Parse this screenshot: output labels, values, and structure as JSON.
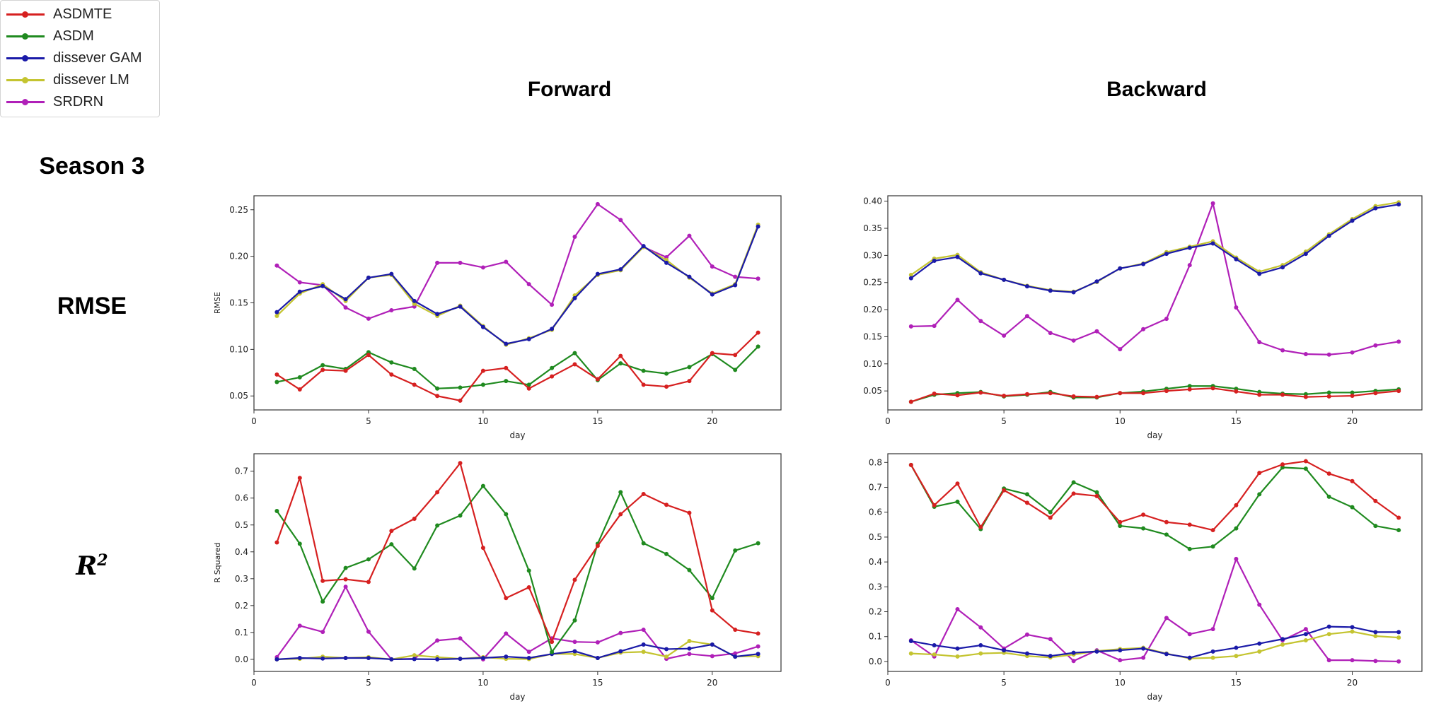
{
  "legend": [
    {
      "name": "ASDMTE",
      "color": "#d62020"
    },
    {
      "name": "ASDM",
      "color": "#1f8a1f"
    },
    {
      "name": "dissever GAM",
      "color": "#1a1aa8"
    },
    {
      "name": "dissever LM",
      "color": "#c4c430"
    },
    {
      "name": "SRDRN",
      "color": "#b020b8"
    }
  ],
  "headers": {
    "forward": "Forward",
    "backward": "Backward",
    "season": "Season 3",
    "rmse": "RMSE",
    "r2_base": "R",
    "r2_sup": "2"
  },
  "chart_data": [
    {
      "id": "rmse_forward",
      "type": "line",
      "xlabel": "day",
      "ylabel": "RMSE",
      "xlim": [
        0,
        23
      ],
      "ylim": [
        0.035,
        0.265
      ],
      "xticks": [
        0,
        5,
        10,
        15,
        20
      ],
      "yticks": [
        0.05,
        0.1,
        0.15,
        0.2,
        0.25
      ],
      "ytick_labels": [
        "0.05",
        "0.10",
        "0.15",
        "0.20",
        "0.25"
      ],
      "x": [
        1,
        2,
        3,
        4,
        5,
        6,
        7,
        8,
        9,
        10,
        11,
        12,
        13,
        14,
        15,
        16,
        17,
        18,
        19,
        20,
        21,
        22
      ],
      "series": [
        {
          "name": "ASDMTE",
          "values": [
            0.073,
            0.057,
            0.078,
            0.077,
            0.094,
            0.073,
            0.062,
            0.05,
            0.045,
            0.077,
            0.08,
            0.058,
            0.071,
            0.084,
            0.068,
            0.093,
            0.062,
            0.06,
            0.066,
            0.096,
            0.094,
            0.118
          ]
        },
        {
          "name": "ASDM",
          "values": [
            0.065,
            0.07,
            0.083,
            0.079,
            0.097,
            0.086,
            0.079,
            0.058,
            0.059,
            0.062,
            0.066,
            0.062,
            0.08,
            0.096,
            0.067,
            0.085,
            0.077,
            0.074,
            0.081,
            0.095,
            0.078,
            0.103
          ]
        },
        {
          "name": "dissever GAM",
          "values": [
            0.14,
            0.162,
            0.168,
            0.154,
            0.177,
            0.181,
            0.152,
            0.138,
            0.146,
            0.124,
            0.106,
            0.111,
            0.122,
            0.155,
            0.181,
            0.186,
            0.211,
            0.193,
            0.178,
            0.159,
            0.169,
            0.232
          ]
        },
        {
          "name": "dissever LM",
          "values": [
            0.136,
            0.16,
            0.17,
            0.152,
            0.177,
            0.18,
            0.149,
            0.136,
            0.147,
            0.125,
            0.105,
            0.112,
            0.121,
            0.158,
            0.18,
            0.185,
            0.21,
            0.196,
            0.177,
            0.16,
            0.17,
            0.234
          ]
        },
        {
          "name": "SRDRN",
          "values": [
            0.19,
            0.172,
            0.169,
            0.145,
            0.133,
            0.142,
            0.146,
            0.193,
            0.193,
            0.188,
            0.194,
            0.17,
            0.148,
            0.221,
            0.256,
            0.239,
            0.21,
            0.199,
            0.222,
            0.189,
            0.178,
            0.176
          ]
        }
      ]
    },
    {
      "id": "rmse_backward",
      "type": "line",
      "xlabel": "day",
      "ylabel": "",
      "xlim": [
        0,
        23
      ],
      "ylim": [
        0.015,
        0.41
      ],
      "xticks": [
        0,
        5,
        10,
        15,
        20
      ],
      "yticks": [
        0.05,
        0.1,
        0.15,
        0.2,
        0.25,
        0.3,
        0.35,
        0.4
      ],
      "ytick_labels": [
        "0.05",
        "0.10",
        "0.15",
        "0.20",
        "0.25",
        "0.30",
        "0.35",
        "0.40"
      ],
      "x": [
        1,
        2,
        3,
        4,
        5,
        6,
        7,
        8,
        9,
        10,
        11,
        12,
        13,
        14,
        15,
        16,
        17,
        18,
        19,
        20,
        21,
        22
      ],
      "series": [
        {
          "name": "ASDMTE",
          "values": [
            0.03,
            0.045,
            0.042,
            0.047,
            0.041,
            0.044,
            0.046,
            0.04,
            0.039,
            0.046,
            0.046,
            0.05,
            0.053,
            0.055,
            0.049,
            0.043,
            0.043,
            0.039,
            0.04,
            0.041,
            0.046,
            0.05
          ]
        },
        {
          "name": "ASDM",
          "values": [
            0.03,
            0.043,
            0.046,
            0.048,
            0.04,
            0.043,
            0.048,
            0.038,
            0.038,
            0.046,
            0.049,
            0.054,
            0.059,
            0.059,
            0.054,
            0.048,
            0.045,
            0.044,
            0.047,
            0.047,
            0.05,
            0.053
          ]
        },
        {
          "name": "dissever GAM",
          "values": [
            0.258,
            0.29,
            0.297,
            0.267,
            0.255,
            0.243,
            0.235,
            0.232,
            0.252,
            0.276,
            0.284,
            0.303,
            0.314,
            0.322,
            0.293,
            0.266,
            0.278,
            0.303,
            0.336,
            0.364,
            0.387,
            0.394
          ]
        },
        {
          "name": "dissever LM",
          "values": [
            0.264,
            0.294,
            0.301,
            0.269,
            0.255,
            0.244,
            0.236,
            0.233,
            0.251,
            0.276,
            0.285,
            0.306,
            0.316,
            0.326,
            0.296,
            0.27,
            0.282,
            0.307,
            0.339,
            0.367,
            0.391,
            0.398
          ]
        },
        {
          "name": "SRDRN",
          "values": [
            0.169,
            0.17,
            0.218,
            0.179,
            0.152,
            0.188,
            0.157,
            0.143,
            0.16,
            0.127,
            0.164,
            0.183,
            0.282,
            0.396,
            0.204,
            0.14,
            0.125,
            0.118,
            0.117,
            0.121,
            0.134,
            0.141
          ]
        }
      ]
    },
    {
      "id": "r2_forward",
      "type": "line",
      "xlabel": "day",
      "ylabel": "R Squared",
      "xlim": [
        0,
        23
      ],
      "ylim": [
        -0.045,
        0.765
      ],
      "xticks": [
        0,
        5,
        10,
        15,
        20
      ],
      "yticks": [
        0.0,
        0.1,
        0.2,
        0.3,
        0.4,
        0.5,
        0.6,
        0.7
      ],
      "ytick_labels": [
        "0.0",
        "0.1",
        "0.2",
        "0.3",
        "0.4",
        "0.5",
        "0.6",
        "0.7"
      ],
      "x": [
        1,
        2,
        3,
        4,
        5,
        6,
        7,
        8,
        9,
        10,
        11,
        12,
        13,
        14,
        15,
        16,
        17,
        18,
        19,
        20,
        21,
        22
      ],
      "series": [
        {
          "name": "ASDMTE",
          "values": [
            0.435,
            0.675,
            0.292,
            0.298,
            0.288,
            0.478,
            0.523,
            0.622,
            0.73,
            0.415,
            0.228,
            0.268,
            0.065,
            0.296,
            0.422,
            0.54,
            0.615,
            0.575,
            0.545,
            0.182,
            0.11,
            0.096
          ]
        },
        {
          "name": "ASDM",
          "values": [
            0.552,
            0.43,
            0.215,
            0.34,
            0.372,
            0.428,
            0.338,
            0.498,
            0.535,
            0.645,
            0.54,
            0.33,
            0.027,
            0.145,
            0.43,
            0.622,
            0.432,
            0.392,
            0.332,
            0.228,
            0.405,
            0.432
          ]
        },
        {
          "name": "dissever GAM",
          "values": [
            0.0,
            0.005,
            0.003,
            0.005,
            0.005,
            0.0,
            0.001,
            0.0,
            0.002,
            0.005,
            0.01,
            0.005,
            0.02,
            0.03,
            0.005,
            0.03,
            0.055,
            0.038,
            0.04,
            0.055,
            0.01,
            0.02
          ]
        },
        {
          "name": "dissever LM",
          "values": [
            0.0,
            0.002,
            0.01,
            0.005,
            0.008,
            0.0,
            0.015,
            0.008,
            0.002,
            0.008,
            0.002,
            0.001,
            0.02,
            0.02,
            0.005,
            0.025,
            0.028,
            0.01,
            0.068,
            0.055,
            0.01,
            0.012
          ]
        },
        {
          "name": "SRDRN",
          "values": [
            0.008,
            0.125,
            0.102,
            0.27,
            0.103,
            0.0,
            0.002,
            0.07,
            0.078,
            0.0,
            0.096,
            0.028,
            0.078,
            0.065,
            0.063,
            0.098,
            0.11,
            0.002,
            0.02,
            0.012,
            0.022,
            0.048
          ]
        }
      ]
    },
    {
      "id": "r2_backward",
      "type": "line",
      "xlabel": "day",
      "ylabel": "",
      "xlim": [
        0,
        23
      ],
      "ylim": [
        -0.04,
        0.835
      ],
      "xticks": [
        0,
        5,
        10,
        15,
        20
      ],
      "yticks": [
        0.0,
        0.1,
        0.2,
        0.3,
        0.4,
        0.5,
        0.6,
        0.7,
        0.8
      ],
      "ytick_labels": [
        "0.0",
        "0.1",
        "0.2",
        "0.3",
        "0.4",
        "0.5",
        "0.6",
        "0.7",
        "0.8"
      ],
      "x": [
        1,
        2,
        3,
        4,
        5,
        6,
        7,
        8,
        9,
        10,
        11,
        12,
        13,
        14,
        15,
        16,
        17,
        18,
        19,
        20,
        21,
        22
      ],
      "series": [
        {
          "name": "ASDMTE",
          "values": [
            0.79,
            0.628,
            0.715,
            0.54,
            0.688,
            0.638,
            0.578,
            0.675,
            0.665,
            0.56,
            0.59,
            0.56,
            0.55,
            0.528,
            0.628,
            0.758,
            0.792,
            0.805,
            0.755,
            0.725,
            0.645,
            0.578
          ]
        },
        {
          "name": "ASDM",
          "values": [
            0.79,
            0.622,
            0.642,
            0.532,
            0.695,
            0.672,
            0.6,
            0.72,
            0.68,
            0.545,
            0.535,
            0.51,
            0.452,
            0.462,
            0.535,
            0.672,
            0.78,
            0.775,
            0.662,
            0.62,
            0.545,
            0.528
          ]
        },
        {
          "name": "dissever GAM",
          "values": [
            0.082,
            0.065,
            0.052,
            0.065,
            0.045,
            0.032,
            0.022,
            0.035,
            0.04,
            0.045,
            0.052,
            0.03,
            0.015,
            0.04,
            0.055,
            0.072,
            0.09,
            0.11,
            0.14,
            0.138,
            0.118,
            0.118
          ]
        },
        {
          "name": "dissever LM",
          "values": [
            0.032,
            0.028,
            0.02,
            0.032,
            0.035,
            0.022,
            0.016,
            0.028,
            0.042,
            0.05,
            0.055,
            0.032,
            0.012,
            0.015,
            0.022,
            0.04,
            0.068,
            0.085,
            0.11,
            0.12,
            0.102,
            0.096
          ]
        },
        {
          "name": "SRDRN",
          "values": [
            0.085,
            0.02,
            0.21,
            0.137,
            0.052,
            0.108,
            0.09,
            0.002,
            0.045,
            0.005,
            0.015,
            0.175,
            0.11,
            0.13,
            0.412,
            0.228,
            0.085,
            0.13,
            0.005,
            0.005,
            0.002,
            0.0
          ]
        }
      ]
    }
  ]
}
